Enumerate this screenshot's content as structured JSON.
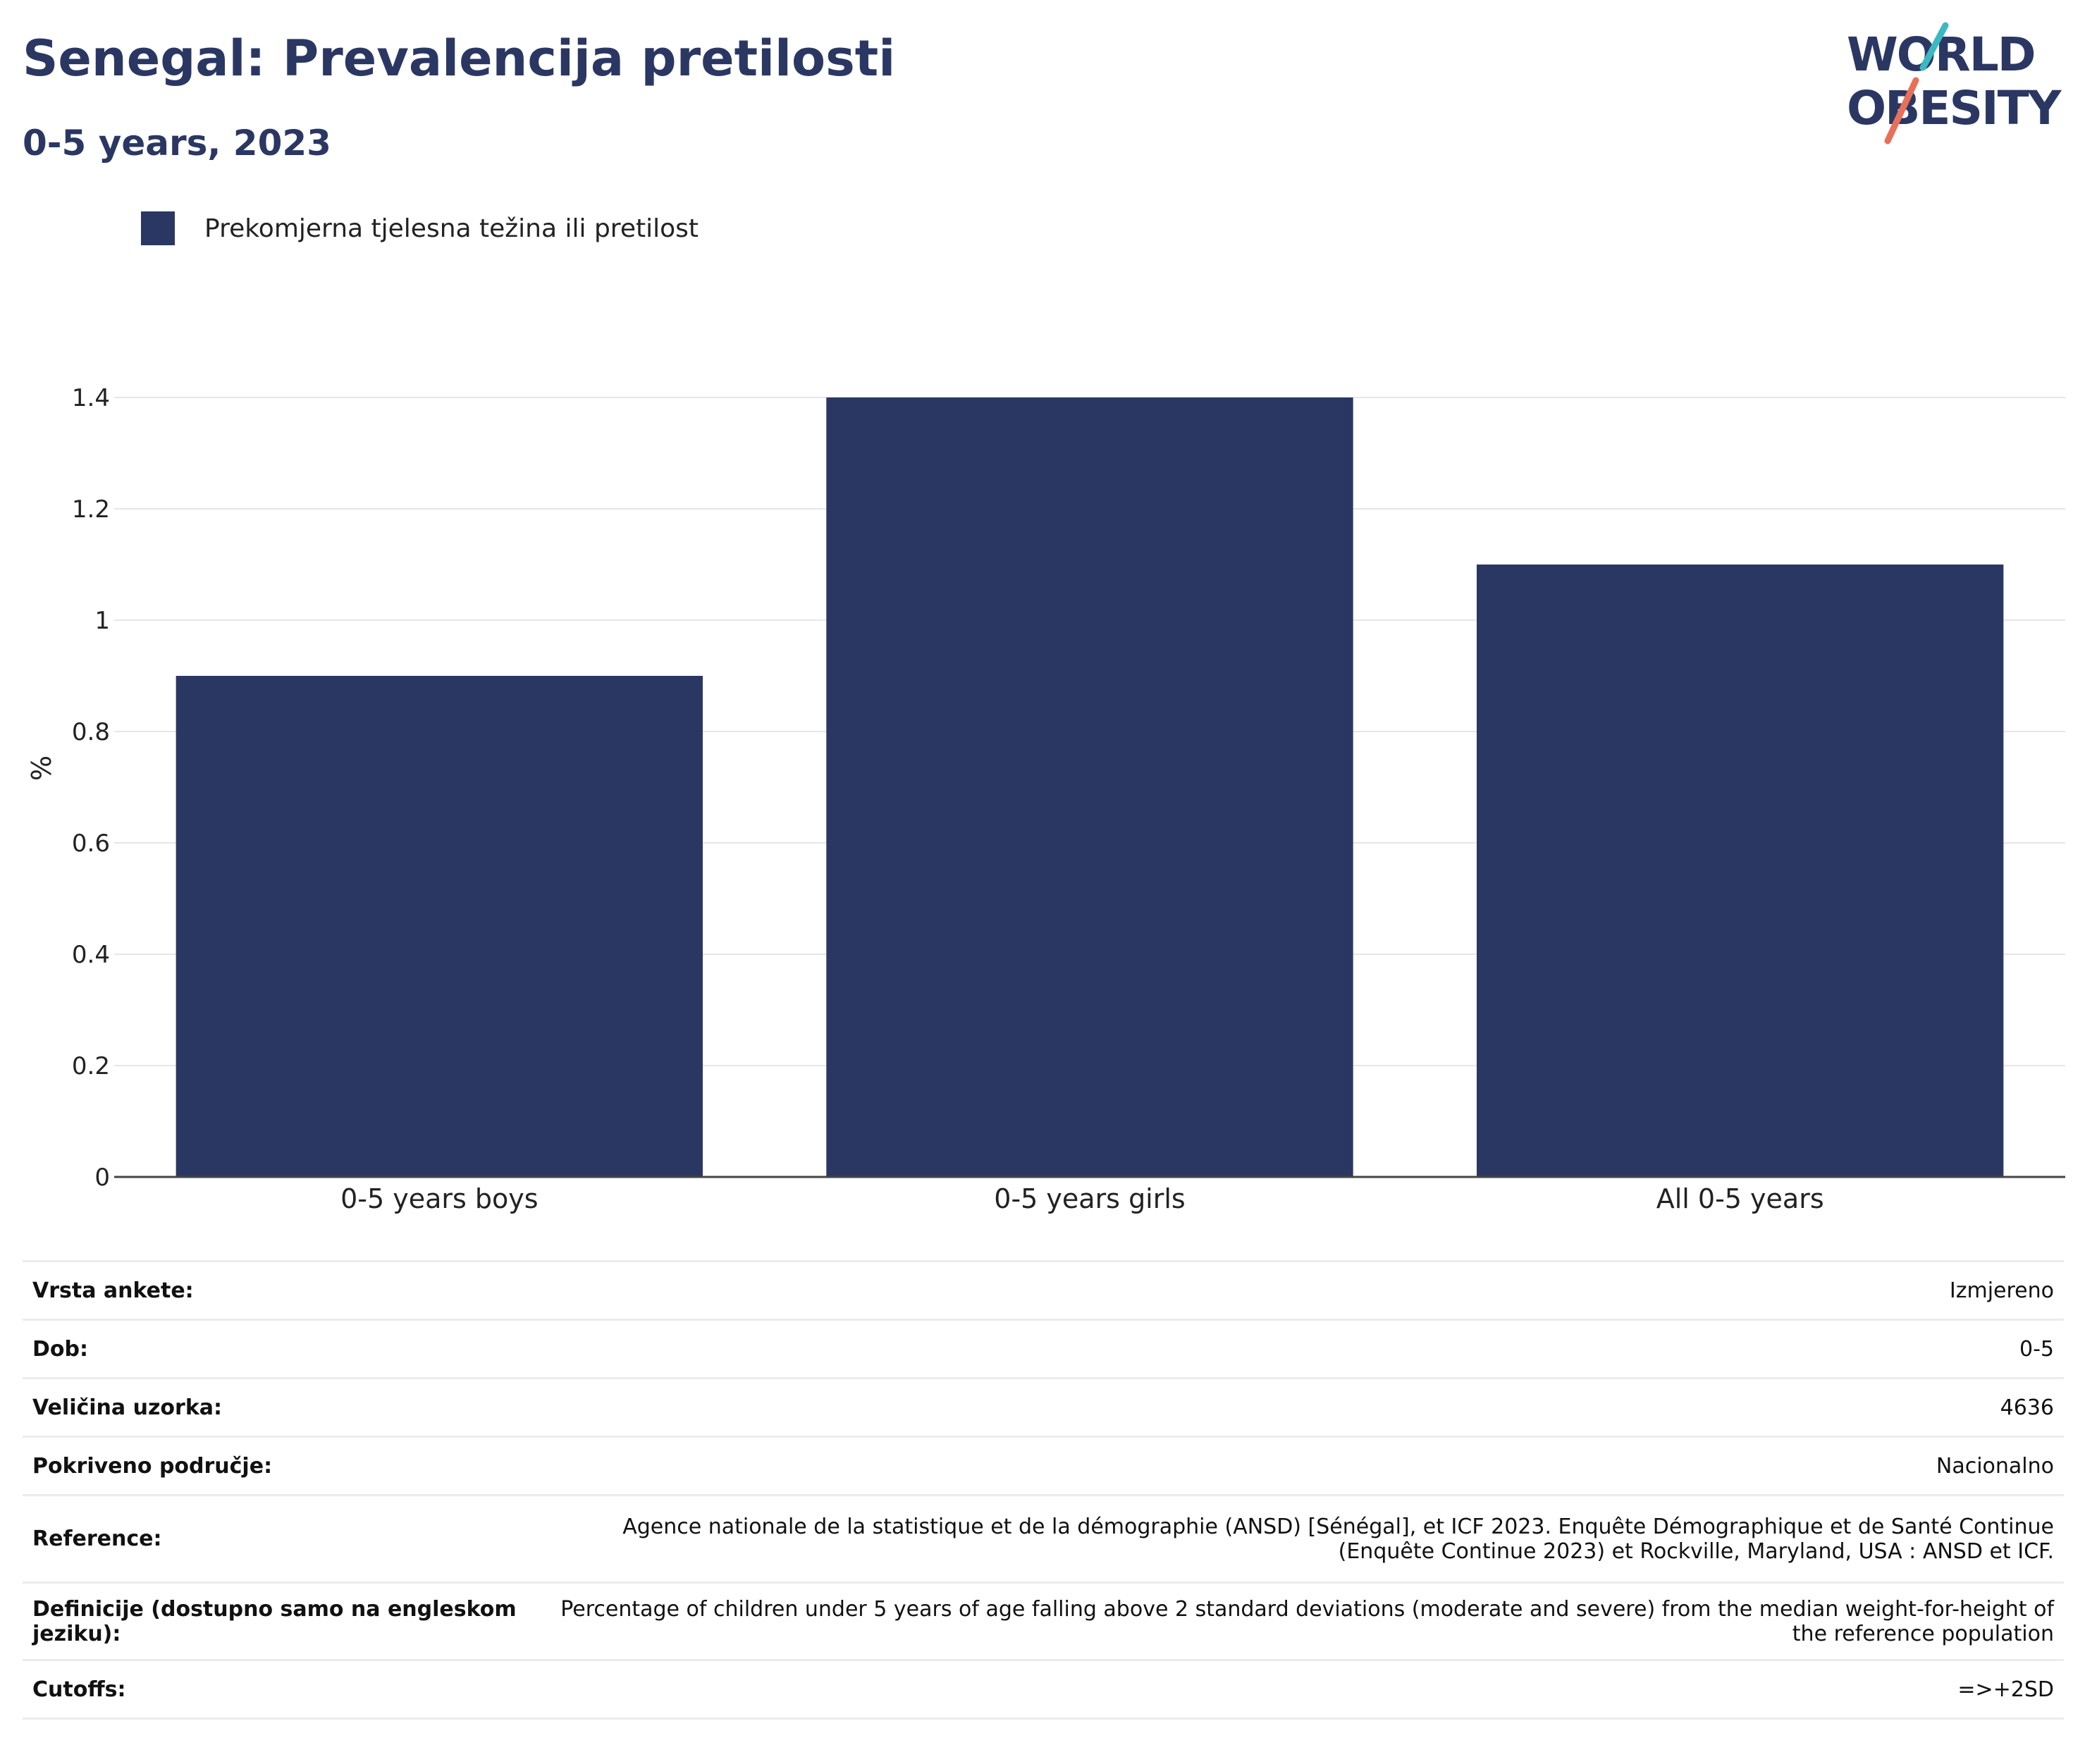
{
  "title": "Senegal: Prevalencija pretilosti",
  "subtitle": "0-5 years, 2023",
  "logo": {
    "line1": "WORLD",
    "line2": "OBESITY",
    "accent_colors": [
      "#3bb9c2",
      "#e8705a"
    ]
  },
  "legend": {
    "label": "Prekomjerna tjelesna težina ili pretilost",
    "color": "#2b3763"
  },
  "chart_data": {
    "type": "bar",
    "categories": [
      "0-5 years boys",
      "0-5 years girls",
      "All 0-5 years"
    ],
    "series": [
      {
        "name": "Prekomjerna tjelesna težina ili pretilost",
        "values": [
          0.9,
          1.4,
          1.1
        ],
        "color": "#2b3763"
      }
    ],
    "ylabel": "%",
    "ylim": [
      0,
      1.4
    ],
    "yticks": [
      0,
      0.2,
      0.4,
      0.6,
      0.8,
      1,
      1.2,
      1.4
    ],
    "ytick_labels": [
      "0",
      "0.2",
      "0.4",
      "0.6",
      "0.8",
      "1",
      "1.2",
      "1.4"
    ],
    "grid": true,
    "legend_position": "top-left"
  },
  "info": [
    {
      "label": "Vrsta ankete:",
      "value": "Izmjereno"
    },
    {
      "label": "Dob:",
      "value": "0-5"
    },
    {
      "label": "Veličina uzorka:",
      "value": "4636"
    },
    {
      "label": "Pokriveno područje:",
      "value": "Nacionalno"
    },
    {
      "label": "Reference:",
      "value": "Agence nationale de la statistique et de la démographie (ANSD) [Sénégal], et ICF 2023. Enquête Démographique et de Santé Continue (Enquête Continue 2023) et Rockville, Maryland, USA : ANSD et ICF."
    },
    {
      "label": "Definicije (dostupno samo na engleskom jeziku):",
      "value": "Percentage of children under 5 years of age falling above 2 standard deviations (moderate and severe) from the median weight-for-height of the reference population"
    },
    {
      "label": "Cutoffs:",
      "value": "=>+2SD"
    }
  ]
}
